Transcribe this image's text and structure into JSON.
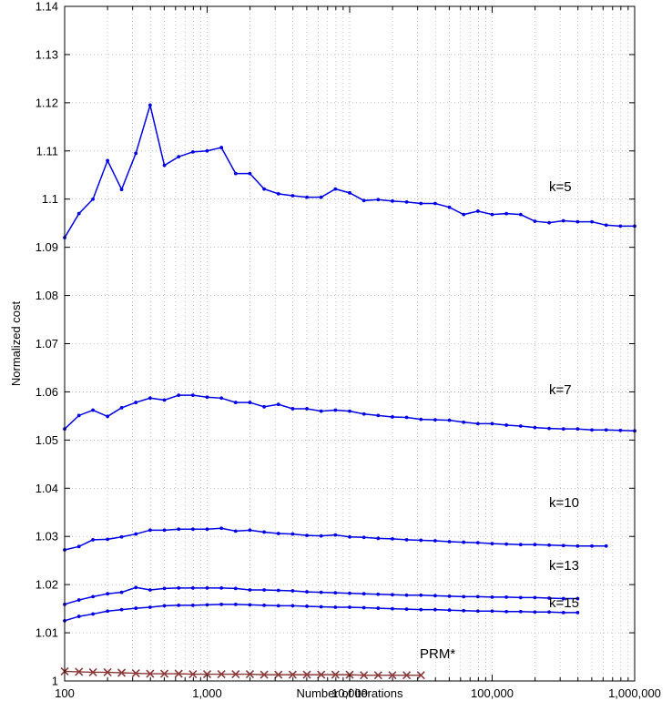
{
  "chart_data": {
    "type": "line",
    "xlabel": "Number of iterations",
    "ylabel": "Normalized cost",
    "xscale": "log",
    "xlim": [
      100,
      1000000
    ],
    "ylim": [
      1.0,
      1.14
    ],
    "grid": true,
    "x_ticks": [
      100,
      1000,
      10000,
      100000,
      1000000
    ],
    "x_tick_labels": [
      "100",
      "1,000",
      "10,000",
      "100,000",
      "1,000,000"
    ],
    "y_ticks": [
      1,
      1.01,
      1.02,
      1.03,
      1.04,
      1.05,
      1.06,
      1.07,
      1.08,
      1.09,
      1.1,
      1.11,
      1.12,
      1.13,
      1.14
    ],
    "y_tick_labels": [
      "1",
      "1.01",
      "1.02",
      "1.03",
      "1.04",
      "1.05",
      "1.06",
      "1.07",
      "1.08",
      "1.09",
      "1.1",
      "1.11",
      "1.12",
      "1.13",
      "1.14"
    ],
    "series": [
      {
        "name": "k=5",
        "color": "#0000e6",
        "marker": "dot",
        "x": [
          100,
          126,
          158,
          200,
          251,
          316,
          398,
          501,
          631,
          794,
          1000,
          1259,
          1585,
          1995,
          2512,
          3162,
          3981,
          5012,
          6310,
          7943,
          10000,
          12589,
          15849,
          19953,
          25119,
          31623,
          39811,
          50119,
          63096,
          79433,
          100000,
          125893,
          158489,
          199526,
          251189,
          316228,
          398107,
          501187,
          630957,
          794328,
          1000000
        ],
        "y": [
          1.092,
          1.097,
          1.1,
          1.108,
          1.102,
          1.1095,
          1.1195,
          1.107,
          1.1088,
          1.1098,
          1.11,
          1.1107,
          1.1053,
          1.1053,
          1.1021,
          1.1011,
          1.1007,
          1.1004,
          1.1004,
          1.1021,
          1.1013,
          1.0997,
          1.0999,
          1.0996,
          1.0994,
          1.0991,
          1.0991,
          1.0983,
          1.0968,
          1.0975,
          1.0968,
          1.097,
          1.0968,
          1.0954,
          1.0951,
          1.0955,
          1.0953,
          1.0953,
          1.0946,
          1.0944,
          1.0944
        ]
      },
      {
        "name": "k=7",
        "color": "#0000e6",
        "marker": "dot",
        "x": [
          100,
          126,
          158,
          200,
          251,
          316,
          398,
          501,
          631,
          794,
          1000,
          1259,
          1585,
          1995,
          2512,
          3162,
          3981,
          5012,
          6310,
          7943,
          10000,
          12589,
          15849,
          19953,
          25119,
          31623,
          39811,
          50119,
          63096,
          79433,
          100000,
          125893,
          158489,
          199526,
          251189,
          316228,
          398107,
          501187,
          630957,
          794328,
          1000000
        ],
        "y": [
          1.0523,
          1.0551,
          1.0562,
          1.0549,
          1.0567,
          1.0578,
          1.0587,
          1.0583,
          1.0593,
          1.0593,
          1.0589,
          1.0587,
          1.0578,
          1.0578,
          1.0569,
          1.0574,
          1.0565,
          1.0565,
          1.056,
          1.0562,
          1.056,
          1.0554,
          1.0551,
          1.0548,
          1.0547,
          1.0543,
          1.0542,
          1.0541,
          1.0537,
          1.0534,
          1.0534,
          1.0531,
          1.0529,
          1.0526,
          1.0524,
          1.0523,
          1.0523,
          1.0521,
          1.0521,
          1.052,
          1.0519
        ]
      },
      {
        "name": "k=10",
        "color": "#0000e6",
        "marker": "dot",
        "x": [
          100,
          126,
          158,
          200,
          251,
          316,
          398,
          501,
          631,
          794,
          1000,
          1259,
          1585,
          1995,
          2512,
          3162,
          3981,
          5012,
          6310,
          7943,
          10000,
          12589,
          15849,
          19953,
          25119,
          31623,
          39811,
          50119,
          63096,
          79433,
          100000,
          125893,
          158489,
          199526,
          251189,
          316228,
          398107,
          501187,
          630957
        ],
        "y": [
          1.0272,
          1.0279,
          1.0293,
          1.0294,
          1.0299,
          1.0305,
          1.0313,
          1.0313,
          1.0315,
          1.0315,
          1.0315,
          1.0317,
          1.0311,
          1.0313,
          1.0309,
          1.0306,
          1.0305,
          1.0302,
          1.0301,
          1.0303,
          1.0299,
          1.0298,
          1.0296,
          1.0295,
          1.0293,
          1.0292,
          1.0291,
          1.0289,
          1.0288,
          1.0287,
          1.0285,
          1.0284,
          1.0283,
          1.0283,
          1.0282,
          1.0281,
          1.028,
          1.028,
          1.028
        ]
      },
      {
        "name": "k=13",
        "color": "#0000e6",
        "marker": "dot",
        "x": [
          100,
          126,
          158,
          200,
          251,
          316,
          398,
          501,
          631,
          794,
          1000,
          1259,
          1585,
          1995,
          2512,
          3162,
          3981,
          5012,
          6310,
          7943,
          10000,
          12589,
          15849,
          19953,
          25119,
          31623,
          39811,
          50119,
          63096,
          79433,
          100000,
          125893,
          158489,
          199526,
          251189,
          316228,
          398107
        ],
        "y": [
          1.0159,
          1.0168,
          1.0175,
          1.0181,
          1.0184,
          1.0194,
          1.0189,
          1.0192,
          1.0193,
          1.0193,
          1.0193,
          1.0193,
          1.0192,
          1.0189,
          1.0189,
          1.0188,
          1.0187,
          1.0185,
          1.0184,
          1.0183,
          1.0182,
          1.0181,
          1.018,
          1.0179,
          1.0178,
          1.0178,
          1.0177,
          1.0176,
          1.0175,
          1.0175,
          1.0174,
          1.0174,
          1.0173,
          1.0173,
          1.0172,
          1.0171,
          1.0171
        ]
      },
      {
        "name": "k=15",
        "color": "#0000e6",
        "marker": "dot",
        "x": [
          100,
          126,
          158,
          200,
          251,
          316,
          398,
          501,
          631,
          794,
          1000,
          1259,
          1585,
          1995,
          2512,
          3162,
          3981,
          5012,
          6310,
          7943,
          10000,
          12589,
          15849,
          19953,
          25119,
          31623,
          39811,
          50119,
          63096,
          79433,
          100000,
          125893,
          158489,
          199526,
          251189,
          316228,
          398107
        ],
        "y": [
          1.0125,
          1.0134,
          1.0139,
          1.0145,
          1.0148,
          1.0151,
          1.0153,
          1.0156,
          1.0157,
          1.0157,
          1.0158,
          1.0159,
          1.0159,
          1.0158,
          1.0157,
          1.0156,
          1.0156,
          1.0155,
          1.0154,
          1.0153,
          1.0153,
          1.0152,
          1.0151,
          1.015,
          1.0149,
          1.0148,
          1.0148,
          1.0147,
          1.0146,
          1.0145,
          1.0145,
          1.0144,
          1.0144,
          1.0143,
          1.0143,
          1.0142,
          1.0142
        ]
      },
      {
        "name": "PRM*",
        "color": "#8b3a3a",
        "marker": "x",
        "x": [
          100,
          126,
          158,
          200,
          251,
          316,
          398,
          501,
          631,
          794,
          1000,
          1259,
          1585,
          1995,
          2512,
          3162,
          3981,
          5012,
          6310,
          7943,
          10000,
          12589,
          15849,
          19953,
          25119,
          31623
        ],
        "y": [
          1.002,
          1.0019,
          1.0018,
          1.0018,
          1.0017,
          1.0016,
          1.0015,
          1.0015,
          1.0015,
          1.0014,
          1.0014,
          1.0014,
          1.0014,
          1.0014,
          1.0013,
          1.0013,
          1.0013,
          1.0013,
          1.0013,
          1.0013,
          1.0013,
          1.0012,
          1.0012,
          1.0012,
          1.0012,
          1.0012
        ]
      }
    ]
  }
}
